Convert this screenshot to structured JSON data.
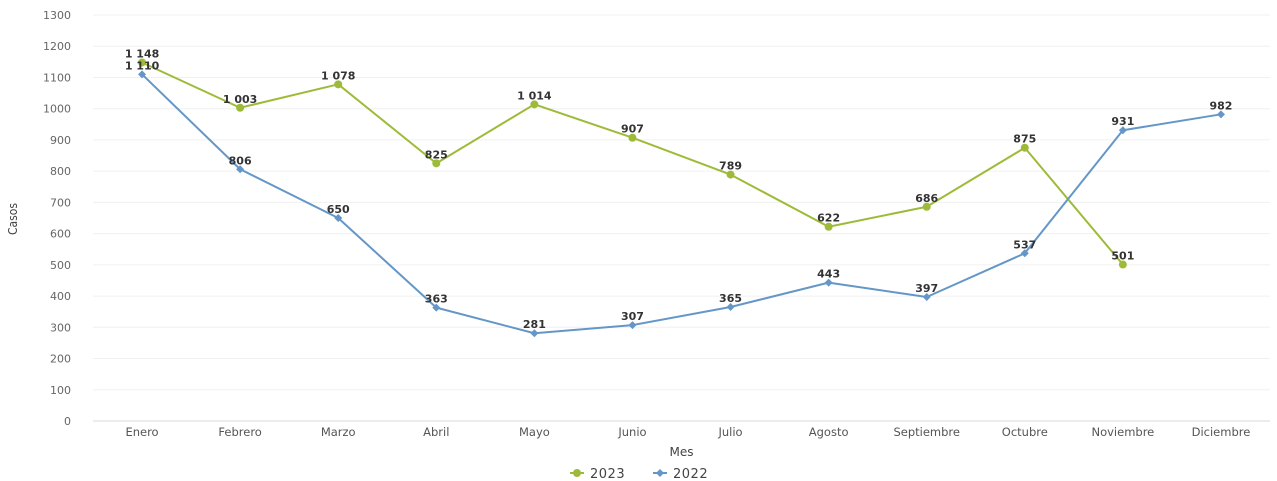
{
  "chart_data": {
    "type": "line",
    "categories": [
      "Enero",
      "Febrero",
      "Marzo",
      "Abril",
      "Mayo",
      "Junio",
      "Julio",
      "Agosto",
      "Septiembre",
      "Octubre",
      "Noviembre",
      "Diciembre"
    ],
    "series": [
      {
        "name": "2023",
        "color": "#9dbb38",
        "values": [
          1148,
          1003,
          1078,
          825,
          1014,
          907,
          789,
          622,
          686,
          875,
          501,
          null
        ],
        "labels": [
          "1 148",
          "1 003",
          "1 078",
          "825",
          "1 014",
          "907",
          "789",
          "622",
          "686",
          "875",
          "501",
          ""
        ]
      },
      {
        "name": "2022",
        "color": "#6497c7",
        "values": [
          1110,
          806,
          650,
          363,
          281,
          307,
          365,
          443,
          397,
          537,
          931,
          982
        ],
        "labels": [
          "1 110",
          "806",
          "650",
          "363",
          "281",
          "307",
          "365",
          "443",
          "397",
          "537",
          "931",
          "982"
        ]
      }
    ],
    "title": "",
    "xlabel": "Mes",
    "ylabel": "Casos",
    "ylim": [
      0,
      1300
    ],
    "yticks": [
      0,
      100,
      200,
      300,
      400,
      500,
      600,
      700,
      800,
      900,
      1000,
      1100,
      1200,
      1300
    ],
    "grid": true,
    "legend_position": "bottom"
  }
}
